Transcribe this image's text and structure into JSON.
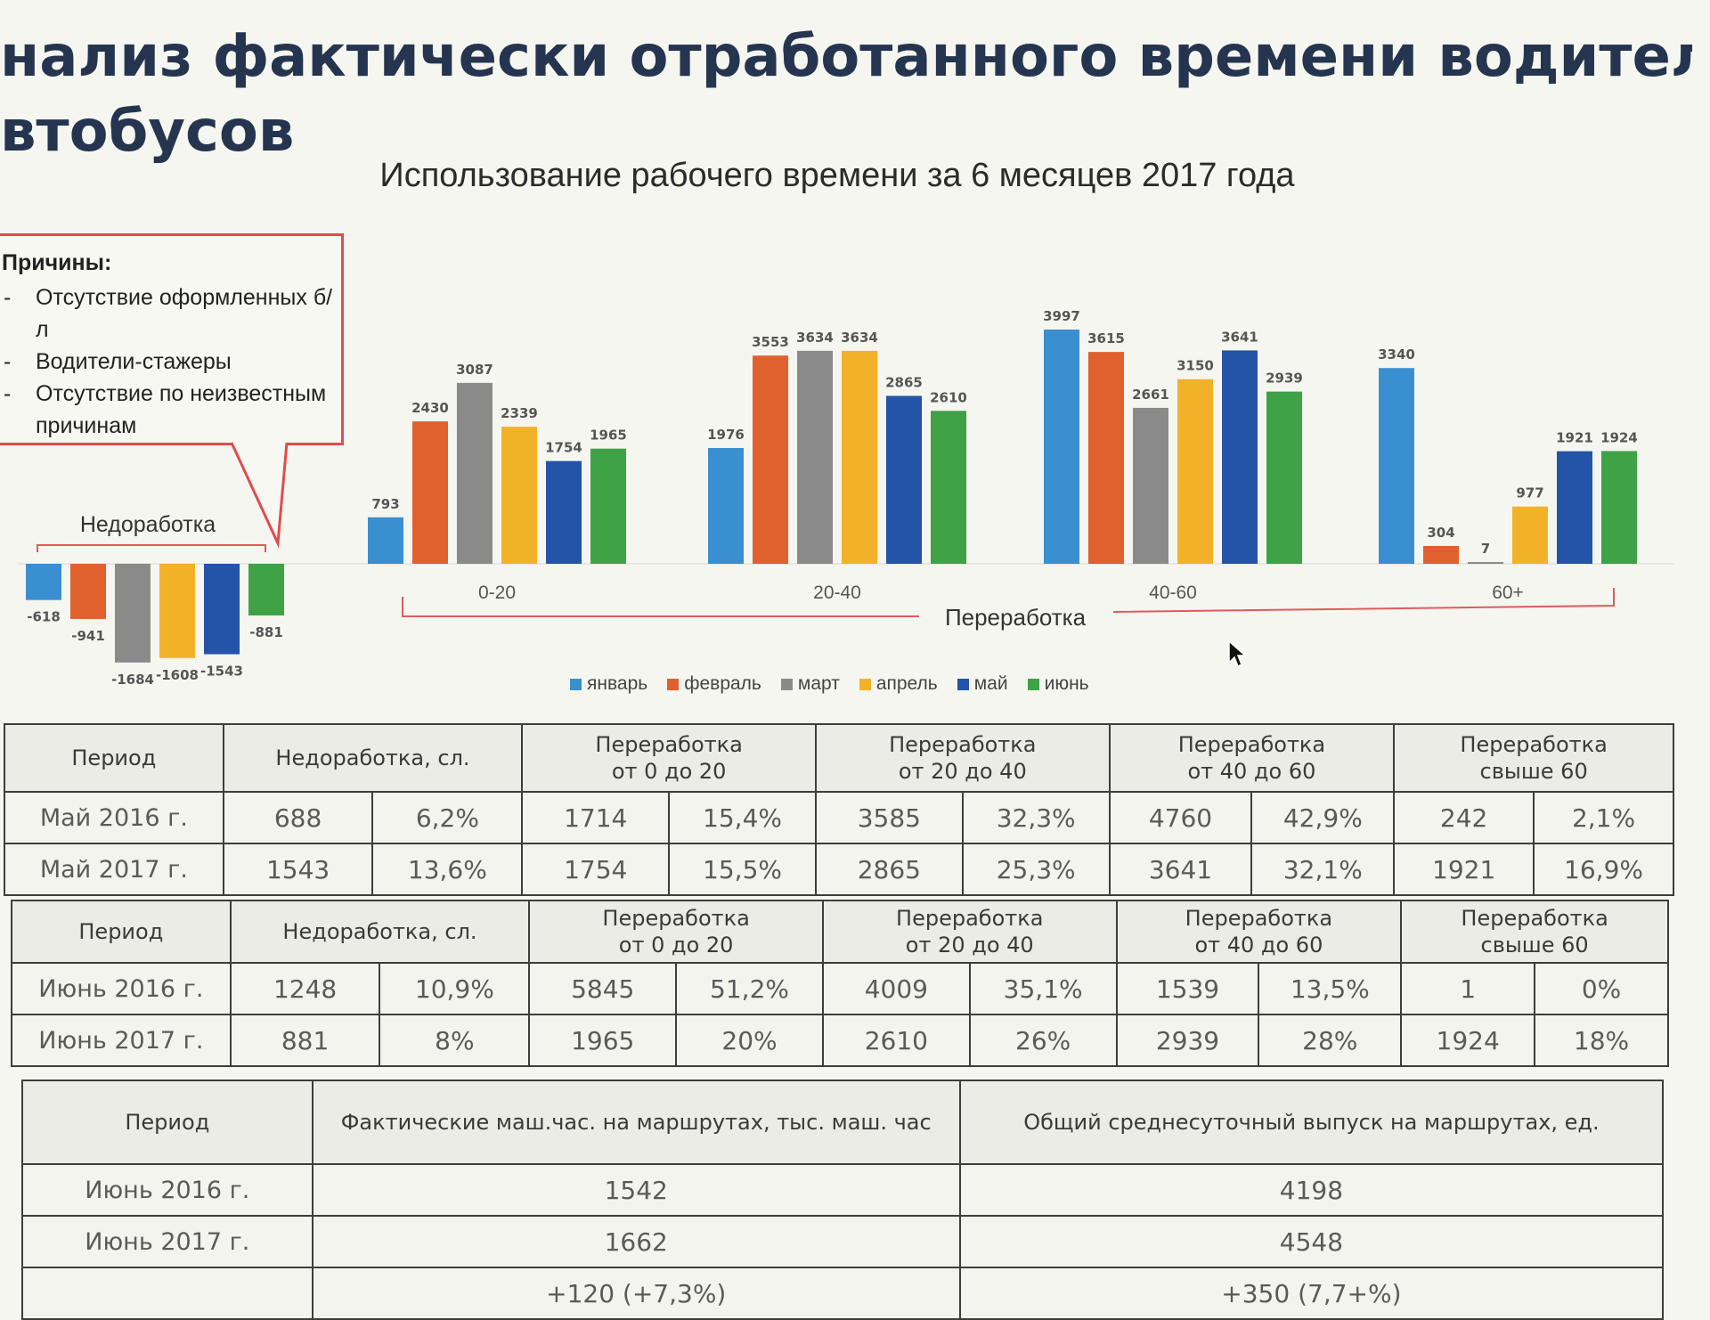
{
  "heading": {
    "line1": "нализ фактически отработанного времени водителями",
    "line2": "втобусов"
  },
  "subtitle": "Использование рабочего времени за 6 месяцев 2017 года",
  "callout": {
    "title": "Причины:",
    "items": [
      "Отсутствие оформленных б/л",
      "Водители-стажеры",
      "Отсутствие по неизвестным причинам"
    ]
  },
  "colors": {
    "январь": "#3a8fd0",
    "февраль": "#e0602e",
    "март": "#8a8a8a",
    "апрель": "#f1b22a",
    "май": "#2454a8",
    "июнь": "#3fa246",
    "bracket": "#e05a5a"
  },
  "chart_data": {
    "type": "bar",
    "series_names": [
      "январь",
      "февраль",
      "март",
      "апрель",
      "май",
      "июнь"
    ],
    "groups": [
      {
        "label": "",
        "values": [
          -618,
          -941,
          -1684,
          -1608,
          -1543,
          -881
        ]
      },
      {
        "label": "0-20",
        "values": [
          793,
          2430,
          3087,
          2339,
          1754,
          1965
        ]
      },
      {
        "label": "20-40",
        "values": [
          1976,
          3553,
          3634,
          3634,
          2865,
          2610
        ]
      },
      {
        "label": "40-60",
        "values": [
          3997,
          3615,
          2661,
          3150,
          3641,
          2939
        ]
      },
      {
        "label": "60+",
        "values": [
          3340,
          304,
          7,
          977,
          1921,
          1924
        ]
      }
    ],
    "bracket_labels": {
      "under": "Недоработка",
      "over": "Переработка"
    },
    "title": "Использование рабочего времени за 6 месяцев 2017 года",
    "legend_position": "bottom"
  },
  "table_headers": {
    "period": "Период",
    "under": "Недоработка, сл.",
    "over_0_20": [
      "Переработка",
      "от 0 до 20"
    ],
    "over_20_40": [
      "Переработка",
      "от 20 до 40"
    ],
    "over_40_60": [
      "Переработка",
      "от 40 до 60"
    ],
    "over_60": [
      "Переработка",
      "свыше 60"
    ]
  },
  "table_may": {
    "rows": [
      {
        "period": "Май 2016 г.",
        "cells": [
          "688",
          "6,2%",
          "1714",
          "15,4%",
          "3585",
          "32,3%",
          "4760",
          "42,9%",
          "242",
          "2,1%"
        ]
      },
      {
        "period": "Май 2017 г.",
        "cells": [
          "1543",
          "13,6%",
          "1754",
          "15,5%",
          "2865",
          "25,3%",
          "3641",
          "32,1%",
          "1921",
          "16,9%"
        ]
      }
    ]
  },
  "table_june": {
    "rows": [
      {
        "period": "Июнь 2016 г.",
        "cells": [
          "1248",
          "10,9%",
          "5845",
          "51,2%",
          "4009",
          "35,1%",
          "1539",
          "13,5%",
          "1",
          "0%"
        ]
      },
      {
        "period": "Июнь 2017 г.",
        "cells": [
          "881",
          "8%",
          "1965",
          "20%",
          "2610",
          "26%",
          "2939",
          "28%",
          "1924",
          "18%"
        ]
      }
    ]
  },
  "table_hours": {
    "headers": [
      "Период",
      "Фактические маш.час. на маршрутах, тыс. маш. час",
      "Общий среднесуточный выпуск на маршрутах, ед."
    ],
    "rows": [
      {
        "period": "Июнь 2016 г.",
        "hours": "1542",
        "output": "4198"
      },
      {
        "period": "Июнь 2017 г.",
        "hours": "1662",
        "output": "4548"
      },
      {
        "period": "",
        "hours": "+120 (+7,3%)",
        "output": "+350 (7,7+%)"
      }
    ]
  }
}
